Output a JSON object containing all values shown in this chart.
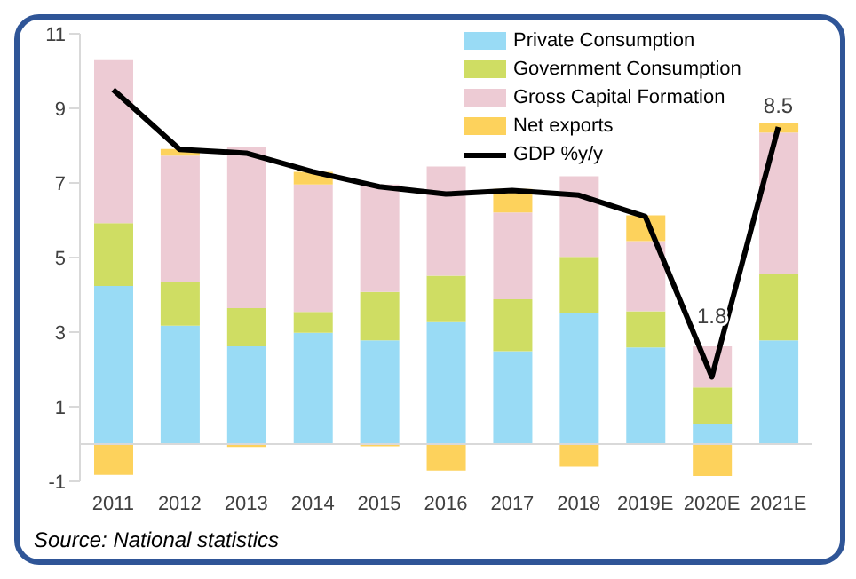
{
  "chart_data": {
    "type": "bar",
    "stacked": true,
    "categories": [
      "2011",
      "2012",
      "2013",
      "2014",
      "2015",
      "2016",
      "2017",
      "2018",
      "2019E",
      "2020E",
      "2021E"
    ],
    "series": [
      {
        "name": "Private Consumption",
        "color": "#99dbf5",
        "values": [
          4.24,
          3.17,
          2.62,
          2.98,
          2.78,
          3.27,
          2.49,
          3.5,
          2.59,
          0.55,
          2.78
        ]
      },
      {
        "name": "Government Consumption",
        "color": "#cfdd63",
        "values": [
          1.68,
          1.17,
          1.02,
          0.56,
          1.3,
          1.24,
          1.39,
          1.52,
          0.97,
          0.97,
          1.78
        ]
      },
      {
        "name": "Gross Capital Formation",
        "color": "#edcbd4",
        "values": [
          4.37,
          3.39,
          4.32,
          3.42,
          2.88,
          2.93,
          2.33,
          2.16,
          1.88,
          1.1,
          3.79
        ]
      },
      {
        "name": "Net exports",
        "color": "#fdd25c",
        "values": [
          -0.83,
          0.18,
          -0.08,
          0.34,
          -0.06,
          -0.71,
          0.63,
          -0.61,
          0.69,
          -0.86,
          0.26
        ]
      },
      {
        "name": "GDP %y/y",
        "type": "line",
        "color": "#000000",
        "values": [
          9.5,
          7.9,
          7.8,
          7.3,
          6.9,
          6.7,
          6.8,
          6.67,
          6.1,
          1.8,
          8.5
        ],
        "value_labels": [
          null,
          null,
          null,
          null,
          null,
          null,
          null,
          null,
          null,
          "1.8",
          "8.5"
        ]
      }
    ],
    "ylim": [
      -1,
      11
    ],
    "yticks": [
      -1,
      1,
      3,
      5,
      7,
      9,
      11
    ],
    "grid": false,
    "legend": "top right",
    "marker": "none",
    "line_style": "solid",
    "annotations": [
      "Source: National statistics"
    ]
  }
}
